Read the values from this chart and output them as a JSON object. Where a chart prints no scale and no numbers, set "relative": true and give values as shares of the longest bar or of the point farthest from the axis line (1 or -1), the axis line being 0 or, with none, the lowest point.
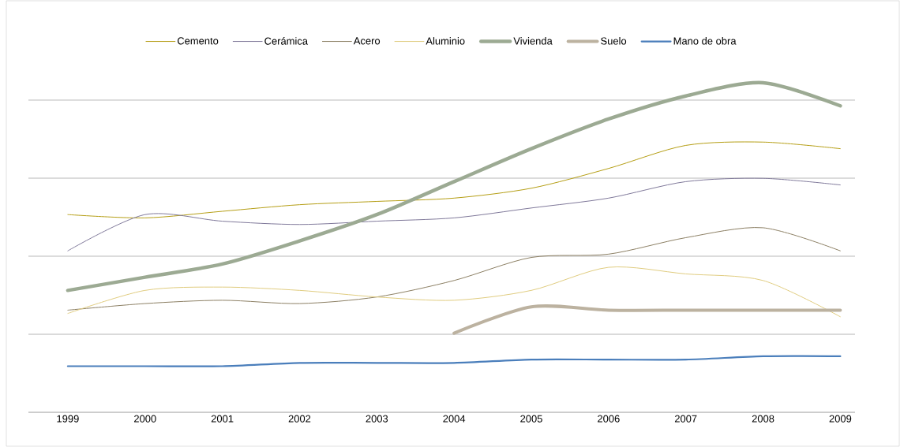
{
  "chart_data": {
    "type": "line",
    "relative": true,
    "grid": "y",
    "legend": "top",
    "categories": [
      "1999",
      "2000",
      "2001",
      "2002",
      "2003",
      "2004",
      "2005",
      "2006",
      "2007",
      "2008",
      "2009"
    ],
    "series": [
      {
        "name": "Cemento",
        "color": "#b59e14",
        "values": [
          0.6,
          0.59,
          0.61,
          0.63,
          0.64,
          0.65,
          0.68,
          0.74,
          0.81,
          0.82,
          0.8
        ]
      },
      {
        "name": "Cerámica",
        "color": "#7f789a",
        "values": [
          0.49,
          0.6,
          0.58,
          0.57,
          0.58,
          0.59,
          0.62,
          0.65,
          0.7,
          0.71,
          0.69
        ]
      },
      {
        "name": "Acero",
        "color": "#8c7f63",
        "values": [
          0.31,
          0.33,
          0.34,
          0.33,
          0.35,
          0.4,
          0.47,
          0.48,
          0.53,
          0.56,
          0.49
        ]
      },
      {
        "name": "Aluminio",
        "color": "#e0cc80",
        "values": [
          0.3,
          0.37,
          0.38,
          0.37,
          0.35,
          0.34,
          0.37,
          0.44,
          0.42,
          0.4,
          0.29
        ]
      },
      {
        "name": "Vivienda",
        "color": "#9caa93",
        "values": [
          0.37,
          0.41,
          0.45,
          0.52,
          0.6,
          0.7,
          0.8,
          0.89,
          0.96,
          1.0,
          0.93
        ]
      },
      {
        "name": "Suelo",
        "color": "#bcb2a0",
        "values": [
          null,
          null,
          null,
          null,
          null,
          0.24,
          0.32,
          0.31,
          0.31,
          0.31,
          0.31
        ]
      },
      {
        "name": "Mano de obra",
        "color": "#4a7ebb",
        "values": [
          0.14,
          0.14,
          0.14,
          0.15,
          0.15,
          0.15,
          0.16,
          0.16,
          0.16,
          0.17,
          0.17
        ]
      }
    ]
  }
}
